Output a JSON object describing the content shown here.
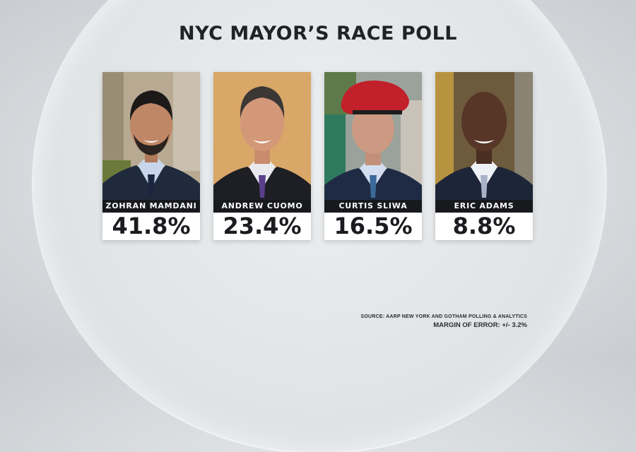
{
  "title": "NYC MAYOR’S RACE POLL",
  "candidates": [
    {
      "name": "ZOHRAN MAMDANI",
      "percent": "41.8%"
    },
    {
      "name": "ANDREW CUOMO",
      "percent": "23.4%"
    },
    {
      "name": "CURTIS SLIWA",
      "percent": "16.5%"
    },
    {
      "name": "ERIC ADAMS",
      "percent": "8.8%"
    }
  ],
  "source": {
    "line1": "SOURCE: AARP NEW YORK AND GOTHAM POLLING & ANALYTICS",
    "line2": "MARGIN OF ERROR: +/- 3.2%"
  },
  "chart_data": {
    "type": "bar",
    "title": "NYC MAYOR’S RACE POLL",
    "categories": [
      "ZOHRAN MAMDANI",
      "ANDREW CUOMO",
      "CURTIS SLIWA",
      "ERIC ADAMS"
    ],
    "values": [
      41.8,
      23.4,
      16.5,
      8.8
    ],
    "unit": "%"
  }
}
